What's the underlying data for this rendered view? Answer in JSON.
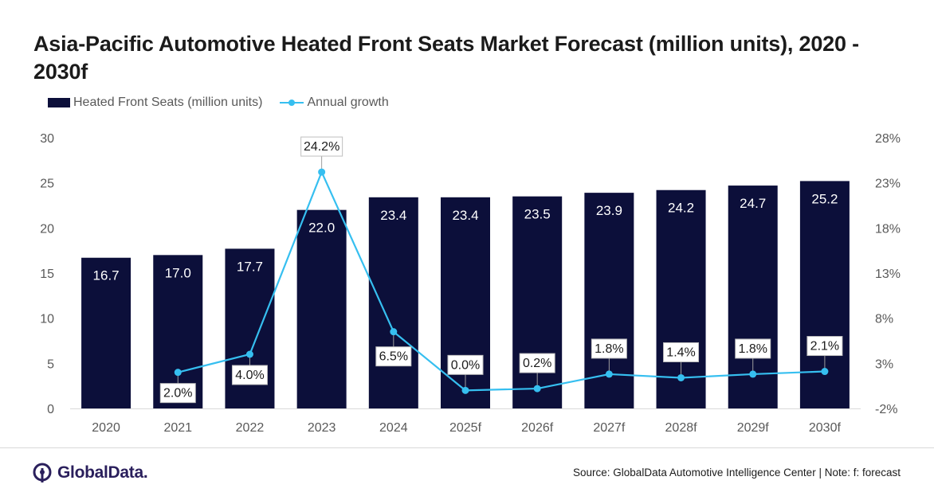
{
  "title": "Asia-Pacific Automotive Heated Front Seats Market Forecast (million units), 2020 - 2030f",
  "legend": {
    "bars": "Heated Front Seats (million units)",
    "line": "Annual growth"
  },
  "footer": {
    "brand": "GlobalData.",
    "source": "Source: GlobalData Automotive Intelligence Center | Note: f: forecast"
  },
  "colors": {
    "bar": "#0c0f3a",
    "line": "#36bff0",
    "axis_text": "#595959"
  },
  "chart_data": {
    "type": "bar",
    "title": "Asia-Pacific Automotive Heated Front Seats Market Forecast (million units), 2020 - 2030f",
    "categories": [
      "2020",
      "2021",
      "2022",
      "2023",
      "2024",
      "2025f",
      "2026f",
      "2027f",
      "2028f",
      "2029f",
      "2030f"
    ],
    "series": [
      {
        "name": "Heated Front Seats (million units)",
        "axis": "left",
        "type": "bar",
        "values": [
          16.7,
          17.0,
          17.7,
          22.0,
          23.4,
          23.4,
          23.5,
          23.9,
          24.2,
          24.7,
          25.2
        ],
        "labels": [
          "16.7",
          "17.0",
          "17.7",
          "22.0",
          "23.4",
          "23.4",
          "23.5",
          "23.9",
          "24.2",
          "24.7",
          "25.2"
        ]
      },
      {
        "name": "Annual growth",
        "axis": "right",
        "type": "line",
        "values": [
          null,
          2.0,
          4.0,
          24.2,
          6.5,
          0.0,
          0.2,
          1.8,
          1.4,
          1.8,
          2.1
        ],
        "labels": [
          "",
          "2.0%",
          "4.0%",
          "24.2%",
          "6.5%",
          "0.0%",
          "0.2%",
          "1.8%",
          "1.4%",
          "1.8%",
          "2.1%"
        ]
      }
    ],
    "y_left": {
      "ylim": [
        0,
        30
      ],
      "ticks": [
        "0",
        "5",
        "10",
        "15",
        "20",
        "25",
        "30"
      ]
    },
    "y_right": {
      "ylim": [
        -2,
        28
      ],
      "ticks": [
        "-2%",
        "3%",
        "8%",
        "13%",
        "18%",
        "23%",
        "28%"
      ]
    },
    "grid": false,
    "legend_position": "top-left"
  }
}
